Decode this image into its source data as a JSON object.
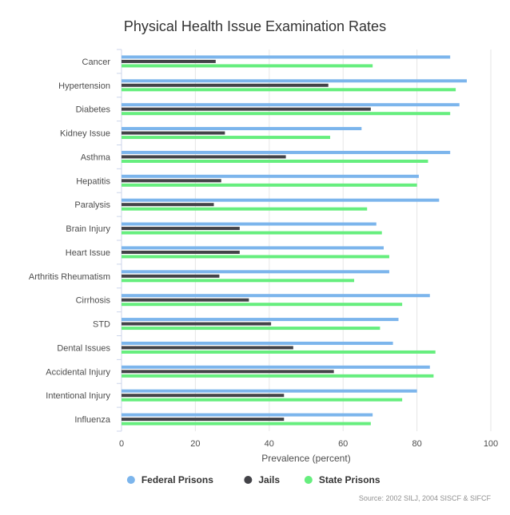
{
  "chart_data": {
    "type": "bar",
    "orientation": "horizontal",
    "title": "Physical Health Issue Examination Rates",
    "xlabel": "Prevalence (percent)",
    "ylabel": "",
    "xlim": [
      0,
      100
    ],
    "ticks": [
      0,
      20,
      40,
      60,
      80,
      100
    ],
    "grid": true,
    "legend_position": "bottom",
    "categories": [
      "Cancer",
      "Hypertension",
      "Diabetes",
      "Kidney Issue",
      "Asthma",
      "Hepatitis",
      "Paralysis",
      "Brain Injury",
      "Heart Issue",
      "Arthritis Rheumatism",
      "Cirrhosis",
      "STD",
      "Dental Issues",
      "Accidental Injury",
      "Intentional Injury",
      "Influenza"
    ],
    "series": [
      {
        "name": "Federal Prisons",
        "color": "#7cb5ec",
        "values": [
          89,
          93.5,
          91.5,
          65,
          89,
          80.5,
          86,
          69,
          71,
          72.5,
          83.5,
          75,
          73.5,
          83.5,
          80,
          68
        ]
      },
      {
        "name": "Jails",
        "color": "#434348",
        "values": [
          25.5,
          56,
          67.5,
          28,
          44.5,
          27,
          25,
          32,
          32,
          26.5,
          34.5,
          40.5,
          46.5,
          57.5,
          44,
          44
        ]
      },
      {
        "name": "State Prisons",
        "color": "#66ee7e",
        "values": [
          68,
          90.5,
          89,
          56.5,
          83,
          80,
          66.5,
          70.5,
          72.5,
          63,
          76,
          70,
          85,
          84.5,
          76,
          67.5
        ]
      }
    ],
    "credit": "Source: 2002 SILJ, 2004 SISCF & SIFCF"
  }
}
